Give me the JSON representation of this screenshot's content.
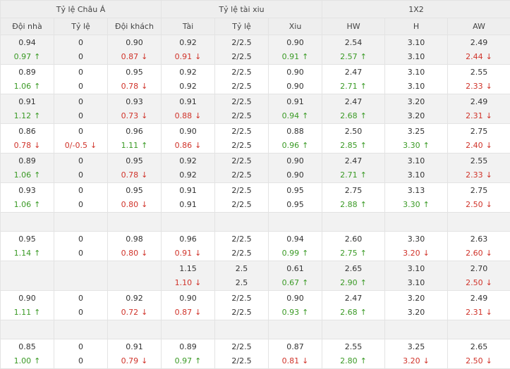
{
  "header": {
    "groups": [
      "Tỷ lệ Châu Á",
      "Tỷ lệ tài xiu",
      "1X2"
    ],
    "columns": [
      "Đội nhà",
      "Tỷ lệ",
      "Đội khách",
      "Tài",
      "Tỷ lệ",
      "Xiu",
      "HW",
      "H",
      "AW"
    ]
  },
  "colors": {
    "up": "#3a9a25",
    "down": "#d0332a"
  },
  "icons": {
    "up": "arrow-up-icon",
    "down": "arrow-down-icon"
  },
  "rows": [
    {
      "cells": [
        [
          {
            "t": "0.94"
          },
          {
            "t": "0.97",
            "d": "up"
          }
        ],
        [
          {
            "t": "0"
          },
          {
            "t": "0"
          }
        ],
        [
          {
            "t": "0.90"
          },
          {
            "t": "0.87",
            "d": "down"
          }
        ],
        [
          {
            "t": "0.92"
          },
          {
            "t": "0.91",
            "d": "down"
          }
        ],
        [
          {
            "t": "2/2.5"
          },
          {
            "t": "2/2.5"
          }
        ],
        [
          {
            "t": "0.90"
          },
          {
            "t": "0.91",
            "d": "up"
          }
        ],
        [
          {
            "t": "2.54"
          },
          {
            "t": "2.57",
            "d": "up"
          }
        ],
        [
          {
            "t": "3.10"
          },
          {
            "t": "3.10"
          }
        ],
        [
          {
            "t": "2.49"
          },
          {
            "t": "2.44",
            "d": "down"
          }
        ]
      ]
    },
    {
      "cells": [
        [
          {
            "t": "0.89"
          },
          {
            "t": "1.06",
            "d": "up"
          }
        ],
        [
          {
            "t": "0"
          },
          {
            "t": "0"
          }
        ],
        [
          {
            "t": "0.95"
          },
          {
            "t": "0.78",
            "d": "down"
          }
        ],
        [
          {
            "t": "0.92"
          },
          {
            "t": "0.92"
          }
        ],
        [
          {
            "t": "2/2.5"
          },
          {
            "t": "2/2.5"
          }
        ],
        [
          {
            "t": "0.90"
          },
          {
            "t": "0.90"
          }
        ],
        [
          {
            "t": "2.47"
          },
          {
            "t": "2.71",
            "d": "up"
          }
        ],
        [
          {
            "t": "3.10"
          },
          {
            "t": "3.10"
          }
        ],
        [
          {
            "t": "2.55"
          },
          {
            "t": "2.33",
            "d": "down"
          }
        ]
      ]
    },
    {
      "cells": [
        [
          {
            "t": "0.91"
          },
          {
            "t": "1.12",
            "d": "up"
          }
        ],
        [
          {
            "t": "0"
          },
          {
            "t": "0"
          }
        ],
        [
          {
            "t": "0.93"
          },
          {
            "t": "0.73",
            "d": "down"
          }
        ],
        [
          {
            "t": "0.91"
          },
          {
            "t": "0.88",
            "d": "down"
          }
        ],
        [
          {
            "t": "2/2.5"
          },
          {
            "t": "2/2.5"
          }
        ],
        [
          {
            "t": "0.91"
          },
          {
            "t": "0.94",
            "d": "up"
          }
        ],
        [
          {
            "t": "2.47"
          },
          {
            "t": "2.68",
            "d": "up"
          }
        ],
        [
          {
            "t": "3.20"
          },
          {
            "t": "3.20"
          }
        ],
        [
          {
            "t": "2.49"
          },
          {
            "t": "2.31",
            "d": "down"
          }
        ]
      ]
    },
    {
      "cells": [
        [
          {
            "t": "0.86"
          },
          {
            "t": "0.78",
            "d": "down"
          }
        ],
        [
          {
            "t": "0"
          },
          {
            "t": "0/-0.5",
            "d": "down"
          }
        ],
        [
          {
            "t": "0.96"
          },
          {
            "t": "1.11",
            "d": "up"
          }
        ],
        [
          {
            "t": "0.90"
          },
          {
            "t": "0.86",
            "d": "down"
          }
        ],
        [
          {
            "t": "2/2.5"
          },
          {
            "t": "2/2.5"
          }
        ],
        [
          {
            "t": "0.88"
          },
          {
            "t": "0.96",
            "d": "up"
          }
        ],
        [
          {
            "t": "2.50"
          },
          {
            "t": "2.85",
            "d": "up"
          }
        ],
        [
          {
            "t": "3.25"
          },
          {
            "t": "3.30",
            "d": "up"
          }
        ],
        [
          {
            "t": "2.75"
          },
          {
            "t": "2.40",
            "d": "down"
          }
        ]
      ]
    },
    {
      "cells": [
        [
          {
            "t": "0.89"
          },
          {
            "t": "1.06",
            "d": "up"
          }
        ],
        [
          {
            "t": "0"
          },
          {
            "t": "0"
          }
        ],
        [
          {
            "t": "0.95"
          },
          {
            "t": "0.78",
            "d": "down"
          }
        ],
        [
          {
            "t": "0.92"
          },
          {
            "t": "0.92"
          }
        ],
        [
          {
            "t": "2/2.5"
          },
          {
            "t": "2/2.5"
          }
        ],
        [
          {
            "t": "0.90"
          },
          {
            "t": "0.90"
          }
        ],
        [
          {
            "t": "2.47"
          },
          {
            "t": "2.71",
            "d": "up"
          }
        ],
        [
          {
            "t": "3.10"
          },
          {
            "t": "3.10"
          }
        ],
        [
          {
            "t": "2.55"
          },
          {
            "t": "2.33",
            "d": "down"
          }
        ]
      ]
    },
    {
      "cells": [
        [
          {
            "t": "0.93"
          },
          {
            "t": "1.06",
            "d": "up"
          }
        ],
        [
          {
            "t": "0"
          },
          {
            "t": "0"
          }
        ],
        [
          {
            "t": "0.95"
          },
          {
            "t": "0.80",
            "d": "down"
          }
        ],
        [
          {
            "t": "0.91"
          },
          {
            "t": "0.91"
          }
        ],
        [
          {
            "t": "2/2.5"
          },
          {
            "t": "2/2.5"
          }
        ],
        [
          {
            "t": "0.95"
          },
          {
            "t": "0.95"
          }
        ],
        [
          {
            "t": "2.75"
          },
          {
            "t": "2.88",
            "d": "up"
          }
        ],
        [
          {
            "t": "3.13"
          },
          {
            "t": "3.30",
            "d": "up"
          }
        ],
        [
          {
            "t": "2.75"
          },
          {
            "t": "2.50",
            "d": "down"
          }
        ]
      ]
    },
    {
      "cells": [
        [
          {
            "t": ""
          }
        ],
        [
          {
            "t": ""
          }
        ],
        [
          {
            "t": ""
          }
        ],
        [
          {
            "t": ""
          }
        ],
        [
          {
            "t": ""
          }
        ],
        [
          {
            "t": ""
          }
        ],
        [
          {
            "t": ""
          }
        ],
        [
          {
            "t": ""
          }
        ],
        [
          {
            "t": ""
          }
        ]
      ]
    },
    {
      "cells": [
        [
          {
            "t": "0.95"
          },
          {
            "t": "1.14",
            "d": "up"
          }
        ],
        [
          {
            "t": "0"
          },
          {
            "t": "0"
          }
        ],
        [
          {
            "t": "0.98"
          },
          {
            "t": "0.80",
            "d": "down"
          }
        ],
        [
          {
            "t": "0.96"
          },
          {
            "t": "0.91",
            "d": "down"
          }
        ],
        [
          {
            "t": "2/2.5"
          },
          {
            "t": "2/2.5"
          }
        ],
        [
          {
            "t": "0.94"
          },
          {
            "t": "0.99",
            "d": "up"
          }
        ],
        [
          {
            "t": "2.60"
          },
          {
            "t": "2.75",
            "d": "up"
          }
        ],
        [
          {
            "t": "3.30"
          },
          {
            "t": "3.20",
            "d": "down"
          }
        ],
        [
          {
            "t": "2.63"
          },
          {
            "t": "2.60",
            "d": "down"
          }
        ]
      ]
    },
    {
      "cells": [
        [],
        [],
        [],
        [
          {
            "t": "1.15"
          },
          {
            "t": "1.10",
            "d": "down"
          }
        ],
        [
          {
            "t": "2.5"
          },
          {
            "t": "2.5"
          }
        ],
        [
          {
            "t": "0.61"
          },
          {
            "t": "0.67",
            "d": "up"
          }
        ],
        [
          {
            "t": "2.65"
          },
          {
            "t": "2.90",
            "d": "up"
          }
        ],
        [
          {
            "t": "3.10"
          },
          {
            "t": "3.10"
          }
        ],
        [
          {
            "t": "2.70"
          },
          {
            "t": "2.50",
            "d": "down"
          }
        ]
      ]
    },
    {
      "cells": [
        [
          {
            "t": "0.90"
          },
          {
            "t": "1.11",
            "d": "up"
          }
        ],
        [
          {
            "t": "0"
          },
          {
            "t": "0"
          }
        ],
        [
          {
            "t": "0.92"
          },
          {
            "t": "0.72",
            "d": "down"
          }
        ],
        [
          {
            "t": "0.90"
          },
          {
            "t": "0.87",
            "d": "down"
          }
        ],
        [
          {
            "t": "2/2.5"
          },
          {
            "t": "2/2.5"
          }
        ],
        [
          {
            "t": "0.90"
          },
          {
            "t": "0.93",
            "d": "up"
          }
        ],
        [
          {
            "t": "2.47"
          },
          {
            "t": "2.68",
            "d": "up"
          }
        ],
        [
          {
            "t": "3.20"
          },
          {
            "t": "3.20"
          }
        ],
        [
          {
            "t": "2.49"
          },
          {
            "t": "2.31",
            "d": "down"
          }
        ]
      ]
    },
    {
      "cells": [
        [],
        [],
        [],
        [],
        [],
        [],
        [],
        [],
        []
      ]
    },
    {
      "cells": [
        [
          {
            "t": "0.85"
          },
          {
            "t": "1.00",
            "d": "up"
          }
        ],
        [
          {
            "t": "0"
          },
          {
            "t": "0"
          }
        ],
        [
          {
            "t": "0.91"
          },
          {
            "t": "0.79",
            "d": "down"
          }
        ],
        [
          {
            "t": "0.89"
          },
          {
            "t": "0.97",
            "d": "up"
          }
        ],
        [
          {
            "t": "2/2.5"
          },
          {
            "t": "2/2.5"
          }
        ],
        [
          {
            "t": "0.87"
          },
          {
            "t": "0.81",
            "d": "down"
          }
        ],
        [
          {
            "t": "2.55"
          },
          {
            "t": "2.80",
            "d": "up"
          }
        ],
        [
          {
            "t": "3.25"
          },
          {
            "t": "3.20",
            "d": "down"
          }
        ],
        [
          {
            "t": "2.65"
          },
          {
            "t": "2.50",
            "d": "down"
          }
        ]
      ]
    }
  ]
}
